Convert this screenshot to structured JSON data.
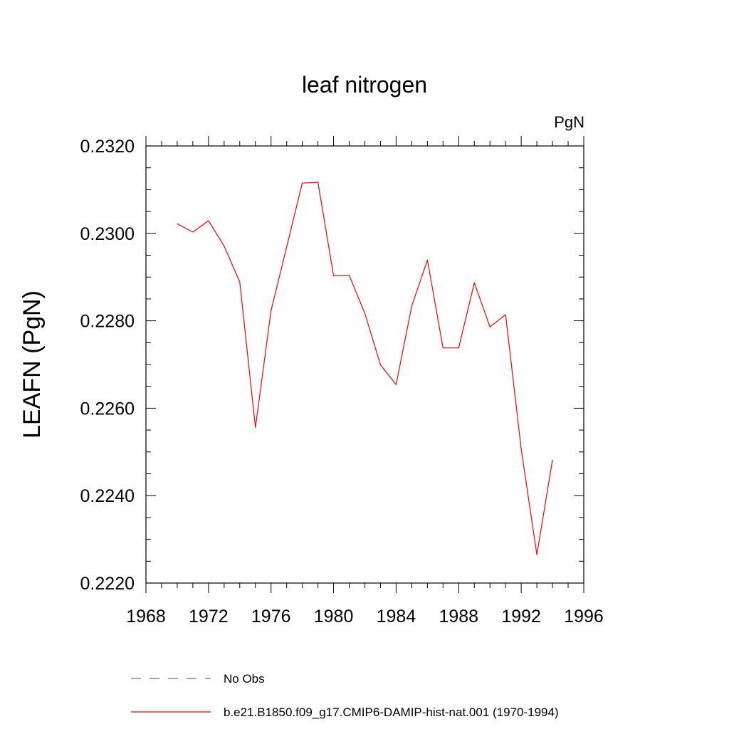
{
  "chart_data": {
    "type": "line",
    "title": "leaf nitrogen",
    "units_label": "PgN",
    "ylabel": "LEAFN  (PgN)",
    "xlabel": "",
    "xlim": [
      1968,
      1996
    ],
    "ylim": [
      0.222,
      0.232
    ],
    "x_ticks": [
      "1968",
      "1972",
      "1976",
      "1980",
      "1984",
      "1988",
      "1992",
      "1996"
    ],
    "y_ticks": [
      "0.2220",
      "0.2240",
      "0.2260",
      "0.2280",
      "0.2300",
      "0.2320"
    ],
    "grid": false,
    "legend_position": "bottom",
    "series": [
      {
        "name": "b.e21.B1850.f09_g17.CMIP6-DAMIP-hist-nat.001 (1970-1994)",
        "color": "#ff0000",
        "dash": "solid",
        "x": [
          1970,
          1971,
          1972,
          1973,
          1974,
          1975,
          1976,
          1977,
          1978,
          1979,
          1980,
          1981,
          1982,
          1983,
          1984,
          1985,
          1986,
          1987,
          1988,
          1989,
          1990,
          1991,
          1992,
          1993,
          1994
        ],
        "y": [
          0.23022,
          0.23003,
          0.23029,
          0.22971,
          0.22889,
          0.22556,
          0.22823,
          0.22969,
          0.23115,
          0.23117,
          0.22903,
          0.22904,
          0.22817,
          0.22699,
          0.22654,
          0.22834,
          0.22939,
          0.22738,
          0.22738,
          0.22887,
          0.22786,
          0.22814,
          0.22507,
          0.22265,
          0.22482
        ]
      }
    ],
    "legend": [
      {
        "label": "No Obs",
        "color": "#6666cc",
        "dash": "dashed"
      },
      {
        "label": "b.e21.B1850.f09_g17.CMIP6-DAMIP-hist-nat.001 (1970-1994)",
        "color": "#ff0000",
        "dash": "solid"
      }
    ]
  }
}
